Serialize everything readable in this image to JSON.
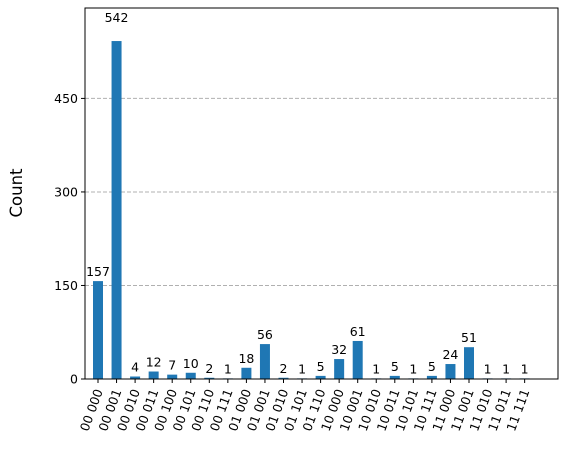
{
  "chart_data": {
    "type": "bar",
    "title": "",
    "xlabel": "",
    "ylabel": "Count",
    "ylim": [
      0,
      595
    ],
    "yticks": [
      0,
      150,
      300,
      450
    ],
    "grid": "y-dashed",
    "bar_color": "#1f77b4",
    "grid_color": "#b0b0b0",
    "categories": [
      "00 000",
      "00 001",
      "00 010",
      "00 011",
      "00 100",
      "00 101",
      "00 110",
      "00 111",
      "01 000",
      "01 001",
      "01 010",
      "01 101",
      "01 110",
      "10 000",
      "10 001",
      "10 010",
      "10 011",
      "10 101",
      "10 111",
      "11 000",
      "11 001",
      "11 010",
      "11 011",
      "11 111"
    ],
    "values": [
      157,
      542,
      4,
      12,
      7,
      10,
      2,
      1,
      18,
      56,
      2,
      1,
      5,
      32,
      61,
      1,
      5,
      1,
      5,
      24,
      51,
      1,
      1,
      1
    ]
  }
}
